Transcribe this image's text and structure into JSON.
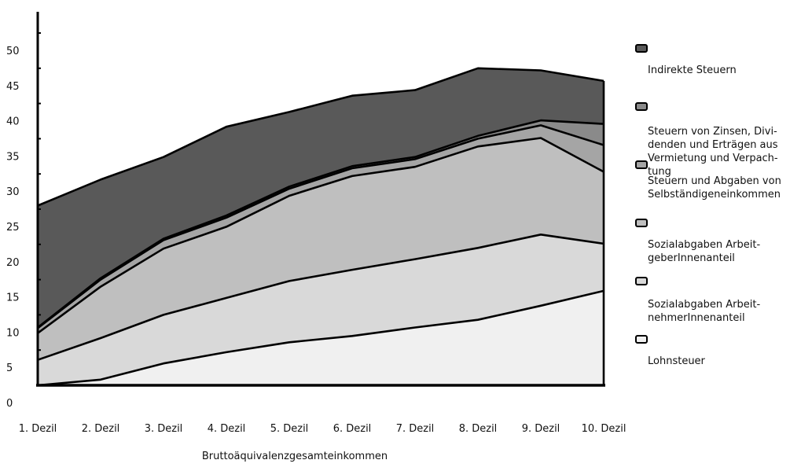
{
  "chart_data": {
    "type": "area",
    "stacked": true,
    "categories": [
      "1. Dezil",
      "2. Dezil",
      "3. Dezil",
      "4. Dezil",
      "5. Dezil",
      "6. Dezil",
      "7. Dezil",
      "8. Dezil",
      "9. Dezil",
      "10. Dezil"
    ],
    "ylim": [
      0,
      50
    ],
    "yticks": [
      0,
      5,
      10,
      15,
      20,
      25,
      30,
      35,
      40,
      45,
      50
    ],
    "y_tick_labels": [
      "0",
      "5",
      "10",
      "15",
      "20",
      "25",
      "30",
      "35",
      "40",
      "45",
      "50"
    ],
    "xlabel": "Bruttoäquivalenzgesamteinkommen",
    "ylabel": "",
    "series": [
      {
        "name": "Lohnsteuer",
        "color": "#f0f0f0",
        "values": [
          0,
          0.8,
          3.1,
          4.7,
          6.1,
          7.0,
          8.2,
          9.3,
          11.3,
          13.4
        ]
      },
      {
        "name": "Sozialabgaben Arbeit-\nnehmerInnenanteil",
        "color": "#d9d9d9",
        "values": [
          3.6,
          5.9,
          6.9,
          7.7,
          8.7,
          9.4,
          9.7,
          10.2,
          10.1,
          6.7
        ]
      },
      {
        "name": "Sozialabgaben Arbeit-\ngeberInnenanteil",
        "color": "#bfbfbf",
        "values": [
          3.8,
          7.3,
          9.4,
          10.1,
          12.1,
          13.3,
          13.1,
          14.4,
          13.7,
          10.2
        ]
      },
      {
        "name": "Steuern und Abgaben von\nSelbständigeneinkommen",
        "color": "#a5a5a5",
        "values": [
          0.7,
          1.0,
          1.2,
          1.3,
          1.0,
          1.1,
          1.1,
          1.1,
          1.8,
          3.8
        ]
      },
      {
        "name": "Steuern von Zinsen, Divi-\ndenden und Erträgen aus\nVermietung und Verpach-\ntung",
        "color": "#8a8a8a",
        "values": [
          0.1,
          0.2,
          0.2,
          0.3,
          0.3,
          0.3,
          0.3,
          0.4,
          0.7,
          3.0
        ]
      },
      {
        "name": "Indirekte Steuern",
        "color": "#595959",
        "values": [
          17.3,
          14.0,
          11.6,
          12.6,
          10.6,
          10.0,
          9.5,
          9.6,
          7.1,
          6.1
        ]
      }
    ]
  }
}
